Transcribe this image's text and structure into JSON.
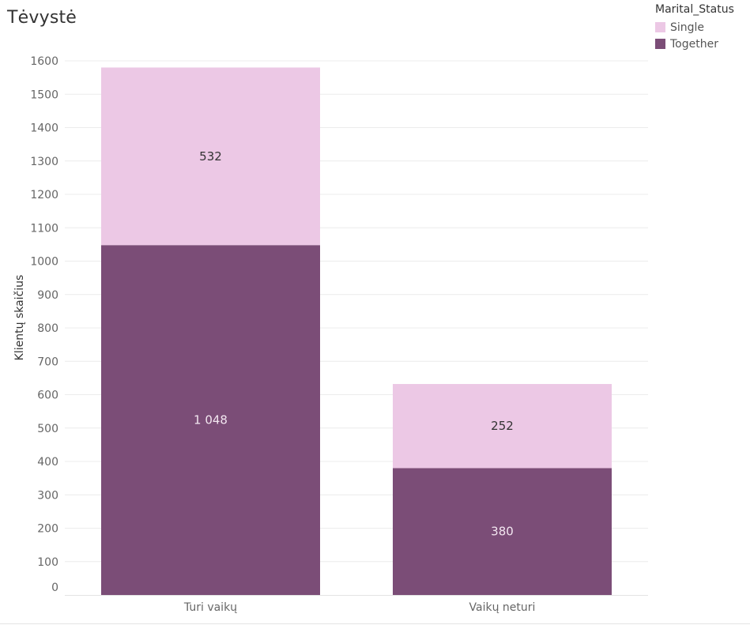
{
  "title": "Tėvystė",
  "legend": {
    "title": "Marital_Status",
    "items": [
      {
        "label": "Single",
        "color": "#ecc8e5"
      },
      {
        "label": "Together",
        "color": "#7b4d77"
      }
    ]
  },
  "chart_data": {
    "type": "bar",
    "stacked": true,
    "title": "Tėvystė",
    "xlabel": "",
    "ylabel": "Klientų skaičius",
    "categories": [
      "Turi vaikų",
      "Vaikų neturi"
    ],
    "series": [
      {
        "name": "Together",
        "color": "#7b4d77",
        "values": [
          1048,
          380
        ],
        "labels": [
          "1 048",
          "380"
        ],
        "label_color": "#f2e6f0"
      },
      {
        "name": "Single",
        "color": "#ecc8e5",
        "values": [
          532,
          252
        ],
        "labels": [
          "532",
          "252"
        ],
        "label_color": "#333333"
      }
    ],
    "ylim": [
      0,
      1600
    ],
    "yticks": [
      0,
      100,
      200,
      300,
      400,
      500,
      600,
      700,
      800,
      900,
      1000,
      1100,
      1200,
      1300,
      1400,
      1500,
      1600
    ],
    "grid": true,
    "legend_position": "top-right"
  }
}
